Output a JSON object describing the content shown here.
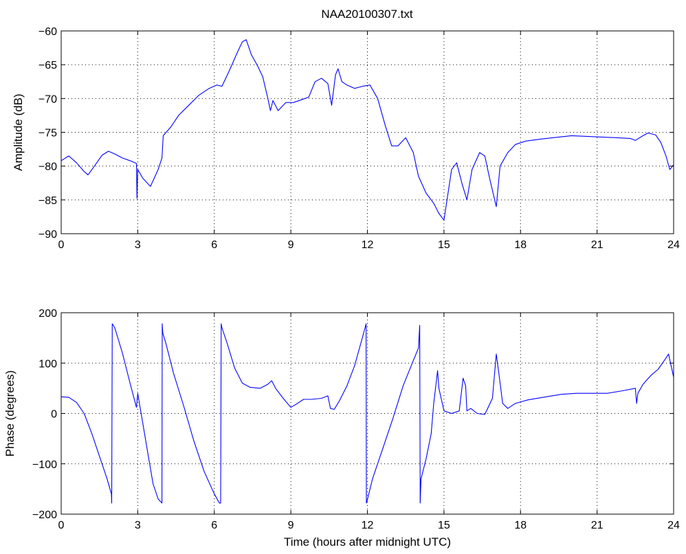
{
  "title": "NAA20100307.txt",
  "chart_data": [
    {
      "type": "line",
      "name": "amplitude-plot",
      "xlabel": "",
      "ylabel": "Amplitude (dB)",
      "xlim": [
        0,
        24
      ],
      "ylim": [
        -90,
        -60
      ],
      "xticks": [
        0,
        3,
        6,
        9,
        12,
        15,
        18,
        21,
        24
      ],
      "xtick_labels": [
        "0",
        "3",
        "6",
        "9",
        "12",
        "15",
        "18",
        "21",
        "24"
      ],
      "yticks": [
        -90,
        -85,
        -80,
        -75,
        -70,
        -65,
        -60
      ],
      "ytick_labels": [
        "−90",
        "−85",
        "−80",
        "−75",
        "−70",
        "−65",
        "−60"
      ],
      "grid": true,
      "color": "#0000ff",
      "x": [
        0.0,
        0.3,
        0.6,
        0.9,
        1.05,
        1.3,
        1.6,
        1.85,
        2.1,
        2.4,
        2.7,
        2.95,
        2.97,
        3.0,
        3.2,
        3.5,
        3.8,
        3.95,
        4.0,
        4.3,
        4.6,
        5.0,
        5.4,
        5.8,
        6.1,
        6.3,
        6.6,
        6.9,
        7.1,
        7.25,
        7.45,
        7.7,
        7.9,
        8.1,
        8.2,
        8.3,
        8.5,
        8.8,
        9.1,
        9.4,
        9.7,
        9.95,
        10.2,
        10.45,
        10.6,
        10.75,
        10.85,
        11.0,
        11.2,
        11.5,
        11.8,
        12.1,
        12.4,
        12.7,
        12.95,
        13.2,
        13.5,
        13.8,
        14.0,
        14.3,
        14.6,
        14.8,
        15.0,
        15.3,
        15.5,
        15.7,
        15.9,
        16.1,
        16.4,
        16.6,
        16.8,
        17.05,
        17.2,
        17.5,
        17.8,
        18.2,
        18.8,
        19.5,
        20.0,
        20.6,
        21.2,
        21.8,
        22.3,
        22.5,
        22.8,
        23.0,
        23.3,
        23.5,
        23.7,
        23.85,
        24.0
      ],
      "y": [
        -79.2,
        -78.5,
        -79.5,
        -80.8,
        -81.3,
        -80.0,
        -78.4,
        -77.8,
        -78.2,
        -78.8,
        -79.2,
        -79.6,
        -84.8,
        -80.5,
        -81.8,
        -83.0,
        -80.5,
        -78.8,
        -75.5,
        -74.2,
        -72.5,
        -71.0,
        -69.5,
        -68.5,
        -68.0,
        -68.2,
        -65.8,
        -63.2,
        -61.6,
        -61.3,
        -63.5,
        -65.2,
        -66.8,
        -70.0,
        -71.8,
        -70.3,
        -71.8,
        -70.6,
        -70.6,
        -70.2,
        -69.8,
        -67.5,
        -67.0,
        -67.8,
        -71.0,
        -66.5,
        -65.6,
        -67.5,
        -68.0,
        -68.5,
        -68.2,
        -68.0,
        -70.0,
        -74.0,
        -77.0,
        -77.0,
        -75.8,
        -78.0,
        -81.5,
        -84.0,
        -85.5,
        -87.0,
        -88.0,
        -80.5,
        -79.5,
        -82.5,
        -85.0,
        -80.5,
        -78.0,
        -78.5,
        -82.0,
        -86.0,
        -80.0,
        -78.0,
        -76.8,
        -76.3,
        -76.0,
        -75.7,
        -75.5,
        -75.6,
        -75.7,
        -75.8,
        -75.9,
        -76.2,
        -75.5,
        -75.1,
        -75.4,
        -76.5,
        -78.5,
        -80.5,
        -79.8
      ]
    },
    {
      "type": "line",
      "name": "phase-plot",
      "xlabel": "Time (hours after midnight UTC)",
      "ylabel": "Phase (degrees)",
      "xlim": [
        0,
        24
      ],
      "ylim": [
        -200,
        200
      ],
      "xticks": [
        0,
        3,
        6,
        9,
        12,
        15,
        18,
        21,
        24
      ],
      "xtick_labels": [
        "0",
        "3",
        "6",
        "9",
        "12",
        "15",
        "18",
        "21",
        "24"
      ],
      "yticks": [
        -200,
        -100,
        0,
        100,
        200
      ],
      "ytick_labels": [
        "−200",
        "−100",
        "0",
        "100",
        "200"
      ],
      "grid": true,
      "color": "#0000ff",
      "x": [
        0.0,
        0.3,
        0.6,
        0.9,
        1.2,
        1.5,
        1.8,
        1.97,
        1.98,
        2.0,
        2.1,
        2.4,
        2.7,
        2.95,
        3.0,
        3.05,
        3.2,
        3.4,
        3.6,
        3.8,
        3.95,
        3.96,
        3.98,
        4.1,
        4.4,
        4.8,
        5.2,
        5.6,
        6.0,
        6.2,
        6.25,
        6.27,
        6.3,
        6.5,
        6.8,
        7.1,
        7.4,
        7.8,
        8.1,
        8.25,
        8.4,
        8.7,
        9.0,
        9.2,
        9.5,
        9.8,
        10.2,
        10.45,
        10.55,
        10.7,
        10.9,
        11.2,
        11.5,
        11.8,
        11.95,
        11.96,
        11.98,
        12.2,
        12.6,
        13.0,
        13.4,
        13.8,
        14.0,
        14.05,
        14.07,
        14.1,
        14.3,
        14.5,
        14.6,
        14.75,
        14.8,
        15.0,
        15.3,
        15.6,
        15.75,
        15.85,
        15.9,
        16.05,
        16.3,
        16.6,
        16.9,
        17.05,
        17.15,
        17.3,
        17.5,
        17.8,
        18.3,
        19.0,
        19.6,
        20.2,
        20.8,
        21.4,
        22.0,
        22.5,
        22.55,
        22.6,
        22.8,
        23.1,
        23.4,
        23.7,
        23.8,
        24.0
      ],
      "y": [
        33,
        32,
        22,
        0,
        -40,
        -85,
        -130,
        -160,
        -178,
        178,
        170,
        120,
        60,
        12,
        40,
        25,
        -20,
        -80,
        -140,
        -170,
        -178,
        178,
        160,
        140,
        80,
        15,
        -55,
        -115,
        -160,
        -178,
        -178,
        178,
        170,
        140,
        90,
        60,
        52,
        50,
        58,
        65,
        50,
        30,
        12,
        18,
        28,
        28,
        30,
        35,
        10,
        8,
        25,
        55,
        95,
        150,
        178,
        -178,
        -175,
        -130,
        -70,
        -10,
        55,
        105,
        130,
        175,
        -178,
        -130,
        -90,
        -40,
        20,
        85,
        50,
        5,
        0,
        5,
        70,
        55,
        5,
        10,
        0,
        -2,
        30,
        118,
        80,
        20,
        10,
        20,
        27,
        33,
        38,
        40,
        40,
        40,
        45,
        50,
        20,
        40,
        58,
        75,
        88,
        110,
        118,
        72
      ]
    }
  ]
}
